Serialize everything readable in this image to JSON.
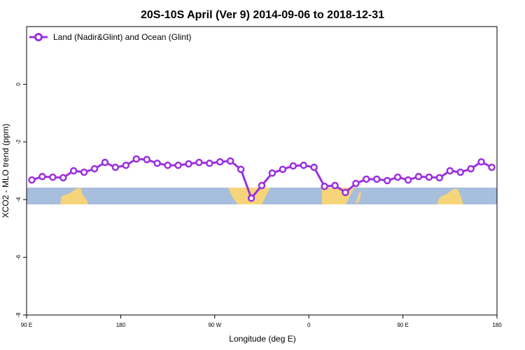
{
  "chart_data": {
    "type": "line",
    "title": "20S-10S April (Ver 9)   2014-09-06 to 2018-12-31",
    "x_label": "Longitude (deg E)",
    "y_label": "XCO2 - MLO trend (ppm)",
    "xlim": [
      90,
      540
    ],
    "xticks": [
      {
        "value": 90,
        "label": "90 E"
      },
      180,
      {
        "value": 270,
        "label": "90 W"
      },
      {
        "value": 360,
        "label": "0"
      },
      {
        "value": 450,
        "label": "90 E"
      },
      {
        "value": 540,
        "label": "180"
      }
    ],
    "ylim": [
      -8,
      2
    ],
    "yticks": [
      -8,
      -6,
      -4,
      -2,
      0
    ],
    "legend_position": "top-left",
    "x": [
      95,
      105,
      115,
      125,
      135,
      145,
      155,
      165,
      175,
      185,
      195,
      205,
      215,
      225,
      235,
      245,
      255,
      265,
      275,
      285,
      295,
      305,
      315,
      325,
      335,
      345,
      355,
      365,
      375,
      385,
      395,
      405,
      415,
      425,
      435,
      445,
      455,
      465,
      475,
      485,
      495,
      505,
      515,
      525,
      535
    ],
    "series": [
      {
        "name": "Land (Nadir&Glint) and Ocean (Glint)",
        "color": "#9b2fe0",
        "values": [
          -3.32,
          -3.2,
          -3.22,
          -3.24,
          -3.0,
          -3.05,
          -2.93,
          -2.71,
          -2.88,
          -2.81,
          -2.59,
          -2.61,
          -2.74,
          -2.81,
          -2.81,
          -2.76,
          -2.71,
          -2.74,
          -2.69,
          -2.66,
          -2.95,
          -3.95,
          -3.51,
          -3.08,
          -2.95,
          -2.83,
          -2.81,
          -2.88,
          -3.54,
          -3.51,
          -3.75,
          -3.44,
          -3.29,
          -3.29,
          -3.34,
          -3.22,
          -3.32,
          -3.2,
          -3.22,
          -3.24,
          -3.0,
          -3.05,
          -2.93,
          -2.69,
          -2.88
        ]
      }
    ]
  }
}
